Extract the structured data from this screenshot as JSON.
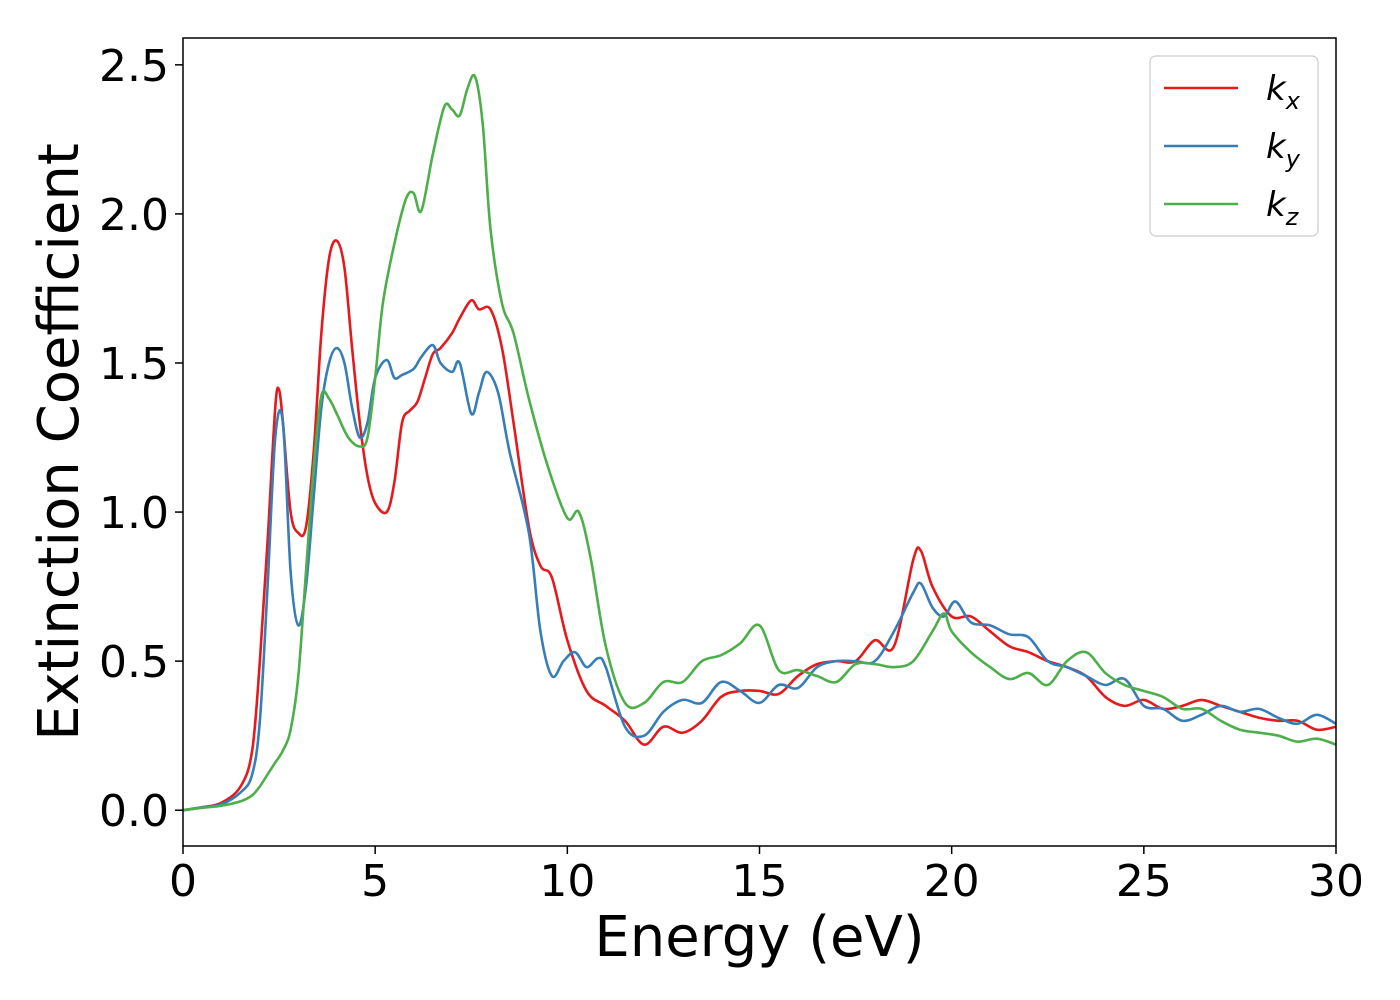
{
  "chart_data": {
    "type": "line",
    "xlabel": "Energy (eV)",
    "ylabel": "Extinction Coefficient",
    "xlim": [
      0,
      30
    ],
    "ylim": [
      -0.12,
      2.59
    ],
    "xticks": [
      "0",
      "5",
      "10",
      "15",
      "20",
      "25",
      "30"
    ],
    "yticks": [
      "0.0",
      "0.5",
      "1.0",
      "1.5",
      "2.0",
      "2.5"
    ],
    "grid": false,
    "legend_position": "top-right",
    "series": [
      {
        "name": "k_x",
        "label_base": "k",
        "label_sub": "x",
        "color": "#e41a1c",
        "x": [
          0,
          0.5,
          1.0,
          1.5,
          1.8,
          2.0,
          2.2,
          2.4,
          2.5,
          2.6,
          2.8,
          3.0,
          3.2,
          3.4,
          3.6,
          3.8,
          4.0,
          4.2,
          4.4,
          4.6,
          4.8,
          5.0,
          5.3,
          5.5,
          5.7,
          5.9,
          6.1,
          6.3,
          6.5,
          6.7,
          7.0,
          7.2,
          7.5,
          7.7,
          8.0,
          8.3,
          8.6,
          9.0,
          9.3,
          9.6,
          10.0,
          10.5,
          11.0,
          11.5,
          12.0,
          12.5,
          13.0,
          13.5,
          14.0,
          14.5,
          15.0,
          15.5,
          16.0,
          16.5,
          17.0,
          17.5,
          18.0,
          18.5,
          19.0,
          19.2,
          19.5,
          20.0,
          20.5,
          21.0,
          21.5,
          22.0,
          22.5,
          23.0,
          23.5,
          24.0,
          24.5,
          25.0,
          25.5,
          26.0,
          26.5,
          27.0,
          27.5,
          28.0,
          28.5,
          29.0,
          29.5,
          30.0
        ],
        "y": [
          0.0,
          0.01,
          0.025,
          0.08,
          0.2,
          0.5,
          0.9,
          1.35,
          1.41,
          1.3,
          1.0,
          0.93,
          0.95,
          1.2,
          1.6,
          1.85,
          1.91,
          1.82,
          1.55,
          1.3,
          1.12,
          1.03,
          1.0,
          1.1,
          1.3,
          1.34,
          1.37,
          1.45,
          1.53,
          1.55,
          1.6,
          1.65,
          1.71,
          1.68,
          1.68,
          1.55,
          1.3,
          0.95,
          0.82,
          0.78,
          0.57,
          0.4,
          0.35,
          0.3,
          0.22,
          0.28,
          0.26,
          0.3,
          0.38,
          0.4,
          0.4,
          0.39,
          0.45,
          0.49,
          0.5,
          0.5,
          0.57,
          0.55,
          0.84,
          0.87,
          0.75,
          0.65,
          0.65,
          0.6,
          0.55,
          0.53,
          0.5,
          0.48,
          0.45,
          0.38,
          0.35,
          0.37,
          0.34,
          0.35,
          0.37,
          0.35,
          0.33,
          0.31,
          0.3,
          0.3,
          0.27,
          0.28
        ]
      },
      {
        "name": "k_y",
        "label_base": "k",
        "label_sub": "y",
        "color": "#377eb8",
        "x": [
          0,
          0.5,
          1.0,
          1.5,
          1.8,
          2.0,
          2.2,
          2.4,
          2.6,
          2.8,
          3.0,
          3.2,
          3.4,
          3.6,
          3.8,
          4.0,
          4.2,
          4.4,
          4.6,
          4.8,
          5.0,
          5.3,
          5.5,
          5.7,
          6.0,
          6.2,
          6.5,
          6.7,
          7.0,
          7.2,
          7.5,
          7.7,
          7.9,
          8.2,
          8.5,
          9.0,
          9.3,
          9.6,
          9.9,
          10.2,
          10.5,
          10.8,
          11.0,
          11.5,
          12.0,
          12.5,
          13.0,
          13.5,
          14.0,
          14.5,
          15.0,
          15.5,
          16.0,
          16.5,
          17.0,
          17.5,
          18.0,
          18.5,
          19.0,
          19.2,
          19.5,
          19.8,
          20.1,
          20.5,
          21.0,
          21.5,
          22.0,
          22.5,
          23.0,
          23.5,
          24.0,
          24.5,
          25.0,
          25.5,
          26.0,
          26.5,
          27.0,
          27.5,
          28.0,
          28.5,
          29.0,
          29.5,
          30.0
        ],
        "y": [
          0.0,
          0.01,
          0.02,
          0.06,
          0.12,
          0.3,
          0.75,
          1.25,
          1.3,
          0.8,
          0.62,
          0.75,
          1.05,
          1.35,
          1.5,
          1.55,
          1.5,
          1.35,
          1.25,
          1.3,
          1.45,
          1.51,
          1.45,
          1.46,
          1.48,
          1.52,
          1.56,
          1.5,
          1.47,
          1.5,
          1.33,
          1.4,
          1.47,
          1.4,
          1.2,
          0.93,
          0.6,
          0.45,
          0.5,
          0.53,
          0.48,
          0.51,
          0.48,
          0.28,
          0.25,
          0.33,
          0.37,
          0.36,
          0.43,
          0.4,
          0.36,
          0.42,
          0.41,
          0.48,
          0.5,
          0.5,
          0.5,
          0.6,
          0.73,
          0.76,
          0.68,
          0.65,
          0.7,
          0.63,
          0.62,
          0.59,
          0.58,
          0.5,
          0.48,
          0.45,
          0.42,
          0.44,
          0.35,
          0.34,
          0.3,
          0.32,
          0.35,
          0.33,
          0.34,
          0.31,
          0.29,
          0.32,
          0.29
        ]
      },
      {
        "name": "k_z",
        "label_base": "k",
        "label_sub": "z",
        "color": "#4daf4a",
        "x": [
          0,
          0.5,
          1.0,
          1.5,
          1.8,
          2.0,
          2.2,
          2.4,
          2.6,
          2.8,
          3.0,
          3.2,
          3.4,
          3.6,
          3.8,
          4.0,
          4.3,
          4.6,
          4.8,
          5.0,
          5.2,
          5.5,
          5.8,
          6.0,
          6.2,
          6.5,
          6.8,
          7.0,
          7.2,
          7.4,
          7.6,
          7.8,
          8.0,
          8.3,
          8.6,
          9.0,
          9.5,
          10.0,
          10.3,
          10.6,
          11.0,
          11.5,
          12.0,
          12.5,
          13.0,
          13.5,
          14.0,
          14.5,
          15.0,
          15.5,
          16.0,
          16.5,
          17.0,
          17.5,
          18.0,
          18.5,
          19.0,
          19.5,
          19.8,
          20.0,
          20.5,
          21.0,
          21.5,
          22.0,
          22.5,
          23.0,
          23.5,
          24.0,
          24.5,
          25.0,
          25.5,
          26.0,
          26.5,
          27.0,
          27.5,
          28.0,
          28.5,
          29.0,
          29.5,
          30.0
        ],
        "y": [
          0.0,
          0.008,
          0.015,
          0.03,
          0.05,
          0.08,
          0.12,
          0.16,
          0.2,
          0.27,
          0.45,
          0.8,
          1.15,
          1.39,
          1.38,
          1.33,
          1.25,
          1.22,
          1.25,
          1.45,
          1.7,
          1.9,
          2.05,
          2.07,
          2.01,
          2.2,
          2.36,
          2.35,
          2.33,
          2.42,
          2.46,
          2.3,
          1.95,
          1.7,
          1.6,
          1.38,
          1.15,
          0.98,
          1.0,
          0.85,
          0.55,
          0.36,
          0.36,
          0.43,
          0.43,
          0.5,
          0.52,
          0.56,
          0.62,
          0.47,
          0.47,
          0.45,
          0.43,
          0.49,
          0.49,
          0.48,
          0.5,
          0.6,
          0.66,
          0.6,
          0.53,
          0.48,
          0.44,
          0.46,
          0.42,
          0.5,
          0.53,
          0.46,
          0.42,
          0.4,
          0.38,
          0.34,
          0.34,
          0.3,
          0.27,
          0.26,
          0.25,
          0.23,
          0.24,
          0.22
        ]
      }
    ]
  }
}
